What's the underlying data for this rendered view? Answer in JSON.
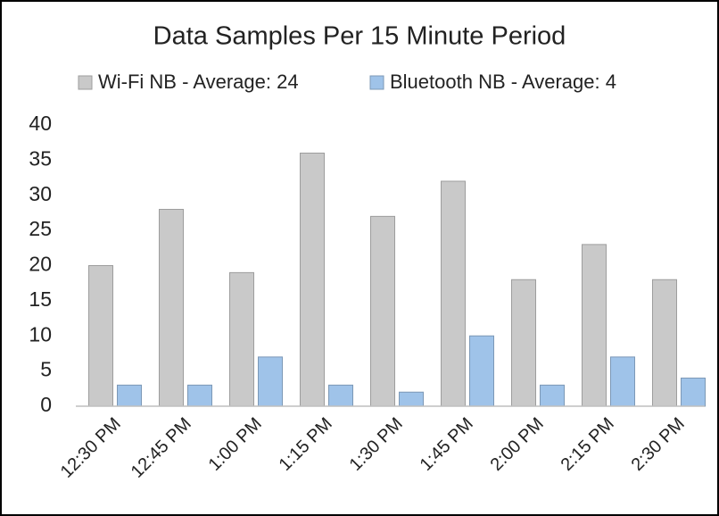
{
  "chart_data": {
    "type": "bar",
    "title": "Data Samples Per 15 Minute Period",
    "categories": [
      "12:30 PM",
      "12:45 PM",
      "1:00 PM",
      "1:15 PM",
      "1:30 PM",
      "1:45 PM",
      "2:00 PM",
      "2:15 PM",
      "2:30 PM"
    ],
    "series": [
      {
        "name": "Wi-Fi NB - Average: 24",
        "color": "#c9c9c9",
        "values": [
          20,
          28,
          19,
          36,
          27,
          32,
          18,
          23,
          18
        ]
      },
      {
        "name": "Bluetooth NB - Average: 4",
        "color": "#9fc3e9",
        "values": [
          3,
          3,
          7,
          3,
          2,
          10,
          3,
          7,
          4
        ]
      }
    ],
    "ylim": [
      0,
      40
    ],
    "yticks": [
      0,
      5,
      10,
      15,
      20,
      25,
      30,
      35,
      40
    ],
    "grid": false,
    "legend": "top"
  }
}
